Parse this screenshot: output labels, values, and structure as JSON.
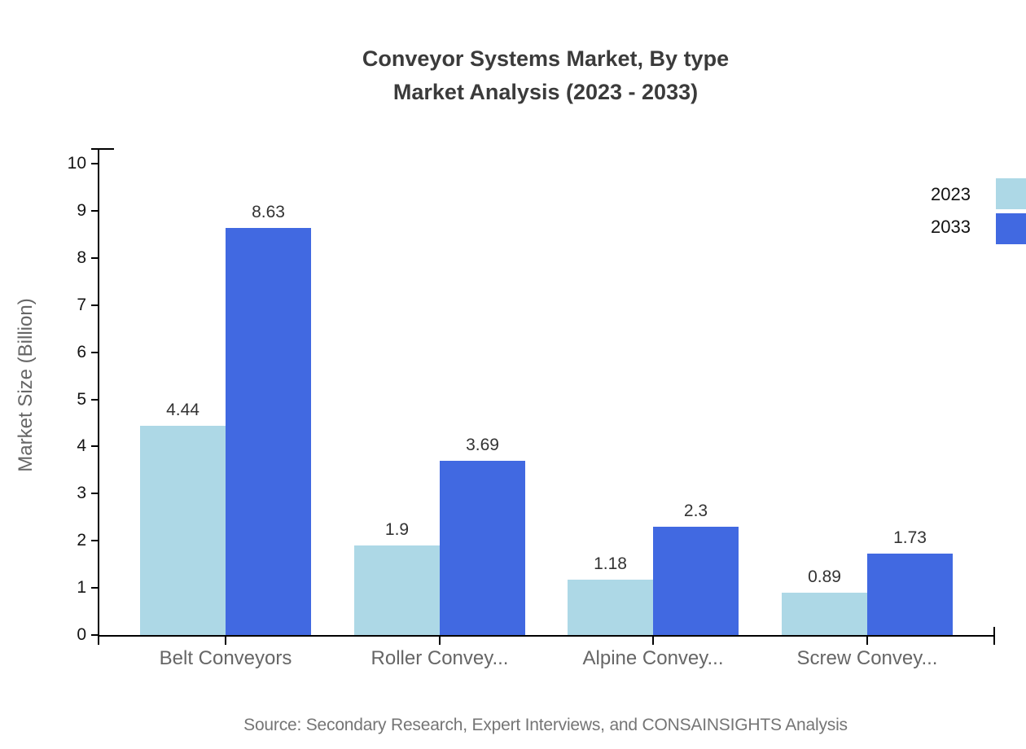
{
  "title": {
    "line1": "Conveyor Systems Market, By type",
    "line2": "Market Analysis (2023 - 2033)"
  },
  "source": "Source: Secondary Research, Expert Interviews, and CONSAINSIGHTS Analysis",
  "chart_data": {
    "type": "bar",
    "title": "Conveyor Systems Market, By type Market Analysis (2023 - 2033)",
    "categories": [
      "Belt Conveyors",
      "Roller Convey...",
      "Alpine Convey...",
      "Screw Convey..."
    ],
    "series": [
      {
        "name": "2023",
        "color": "#ADD8E6",
        "values": [
          4.44,
          1.9,
          1.18,
          0.89
        ]
      },
      {
        "name": "2033",
        "color": "#4169E1",
        "values": [
          8.63,
          3.69,
          2.3,
          1.73
        ]
      }
    ],
    "xlabel": "",
    "ylabel": "Market Size (Billion)",
    "ylim": [
      0,
      10
    ],
    "yticks": [
      0,
      1,
      2,
      3,
      4,
      5,
      6,
      7,
      8,
      9,
      10
    ],
    "grid": false,
    "legend_position": "top-right",
    "bar_value_labels_shown": true
  },
  "colors": {
    "axis": "#000000",
    "title_text": "#3b3b3b",
    "tick_text": "#141414",
    "category_text": "#666666",
    "value_text": "#333333",
    "source_text": "#757575"
  }
}
